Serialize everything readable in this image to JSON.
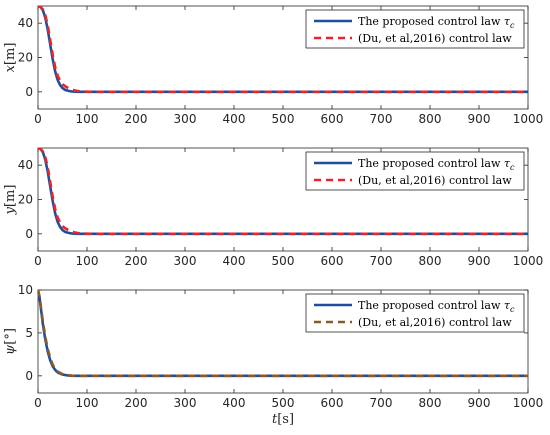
{
  "chart_data": [
    {
      "type": "line",
      "ylabel": {
        "var": "x",
        "unit": "[m]"
      },
      "xlim": [
        0,
        1000
      ],
      "ylim": [
        -10,
        50
      ],
      "yticks": [
        0,
        20,
        40
      ],
      "xticks": [
        0,
        100,
        200,
        300,
        400,
        500,
        600,
        700,
        800,
        900,
        1000
      ],
      "legend": "top-right",
      "series": [
        {
          "name": "The proposed control law",
          "name_symbol": "τ",
          "name_subscript": "c",
          "style": "solid",
          "color": "#1f4e9c",
          "x": [
            0,
            5,
            10,
            15,
            20,
            25,
            30,
            35,
            40,
            45,
            50,
            55,
            60,
            65,
            70,
            75,
            80,
            90,
            100,
            120,
            150,
            200,
            1000
          ],
          "y": [
            50,
            49.5,
            47.5,
            43,
            36,
            27.5,
            19,
            12,
            7,
            4,
            2.2,
            1.2,
            0.7,
            0.4,
            0.2,
            0.1,
            0,
            0,
            0,
            0,
            0,
            0,
            0
          ]
        },
        {
          "name": "(Du, et al,2016) control law",
          "style": "dashed",
          "color": "#e8262a",
          "x": [
            0,
            5,
            10,
            15,
            20,
            25,
            30,
            35,
            40,
            45,
            50,
            55,
            60,
            65,
            70,
            75,
            80,
            90,
            100,
            120,
            150,
            200,
            1000
          ],
          "y": [
            50,
            49.6,
            48,
            44.5,
            38.5,
            30,
            21.5,
            14.5,
            9.5,
            6.5,
            4.5,
            3.3,
            2.5,
            1.8,
            1.2,
            0.8,
            0.5,
            0.2,
            0.1,
            0,
            0,
            0,
            0
          ]
        }
      ]
    },
    {
      "type": "line",
      "ylabel": {
        "var": "y",
        "unit": "[m]"
      },
      "xlim": [
        0,
        1000
      ],
      "ylim": [
        -10,
        50
      ],
      "yticks": [
        0,
        20,
        40
      ],
      "xticks": [
        0,
        100,
        200,
        300,
        400,
        500,
        600,
        700,
        800,
        900,
        1000
      ],
      "legend": "top-right",
      "series": [
        {
          "name": "The proposed control law",
          "name_symbol": "τ",
          "name_subscript": "c",
          "style": "solid",
          "color": "#1f4e9c",
          "x": [
            0,
            5,
            10,
            15,
            20,
            25,
            30,
            35,
            40,
            45,
            50,
            55,
            60,
            65,
            70,
            75,
            80,
            90,
            100,
            120,
            150,
            200,
            1000
          ],
          "y": [
            50,
            49.5,
            47.5,
            43,
            36,
            27.5,
            19,
            12,
            7,
            4,
            2.2,
            1.2,
            0.7,
            0.4,
            0.2,
            0.1,
            0,
            0,
            0,
            0,
            0,
            0,
            0
          ]
        },
        {
          "name": "(Du, et al,2016) control law",
          "style": "dashed",
          "color": "#e8262a",
          "x": [
            0,
            5,
            10,
            15,
            20,
            25,
            30,
            35,
            40,
            45,
            50,
            55,
            60,
            65,
            70,
            75,
            80,
            90,
            100,
            120,
            150,
            200,
            1000
          ],
          "y": [
            50,
            49.6,
            48,
            44.5,
            38.5,
            30,
            21.5,
            14.5,
            9.5,
            6.5,
            4.5,
            3.3,
            2.5,
            1.8,
            1.2,
            0.8,
            0.5,
            0.2,
            0.1,
            0,
            0,
            0,
            0
          ]
        }
      ]
    },
    {
      "type": "line",
      "ylabel": {
        "var": "ψ",
        "unit": "[°]"
      },
      "xlim": [
        0,
        1000
      ],
      "ylim": [
        -2,
        10
      ],
      "yticks": [
        0,
        5,
        10
      ],
      "xticks": [
        0,
        100,
        200,
        300,
        400,
        500,
        600,
        700,
        800,
        900,
        1000
      ],
      "xlabel": {
        "var": "t",
        "unit": "[s]"
      },
      "legend": "top-right",
      "series": [
        {
          "name": "The proposed control law",
          "name_symbol": "τ",
          "name_subscript": "c",
          "style": "solid",
          "color": "#1f4e9c",
          "x": [
            0,
            3,
            6,
            10,
            15,
            20,
            25,
            30,
            35,
            40,
            50,
            60,
            70,
            80,
            100,
            150,
            1000
          ],
          "y": [
            10,
            9.2,
            7.8,
            6,
            4.2,
            2.8,
            1.8,
            1.1,
            0.7,
            0.4,
            0.15,
            0.05,
            0,
            0,
            0,
            0,
            0
          ]
        },
        {
          "name": "(Du, et al,2016) control law",
          "style": "dashed",
          "color": "#8a5a28",
          "x": [
            0,
            3,
            6,
            10,
            15,
            20,
            25,
            30,
            35,
            40,
            50,
            60,
            70,
            80,
            100,
            150,
            1000
          ],
          "y": [
            10,
            9.3,
            8,
            6.3,
            4.5,
            3.1,
            2.1,
            1.3,
            0.85,
            0.5,
            0.2,
            0.08,
            0.02,
            0,
            0,
            0,
            0
          ]
        }
      ]
    }
  ]
}
